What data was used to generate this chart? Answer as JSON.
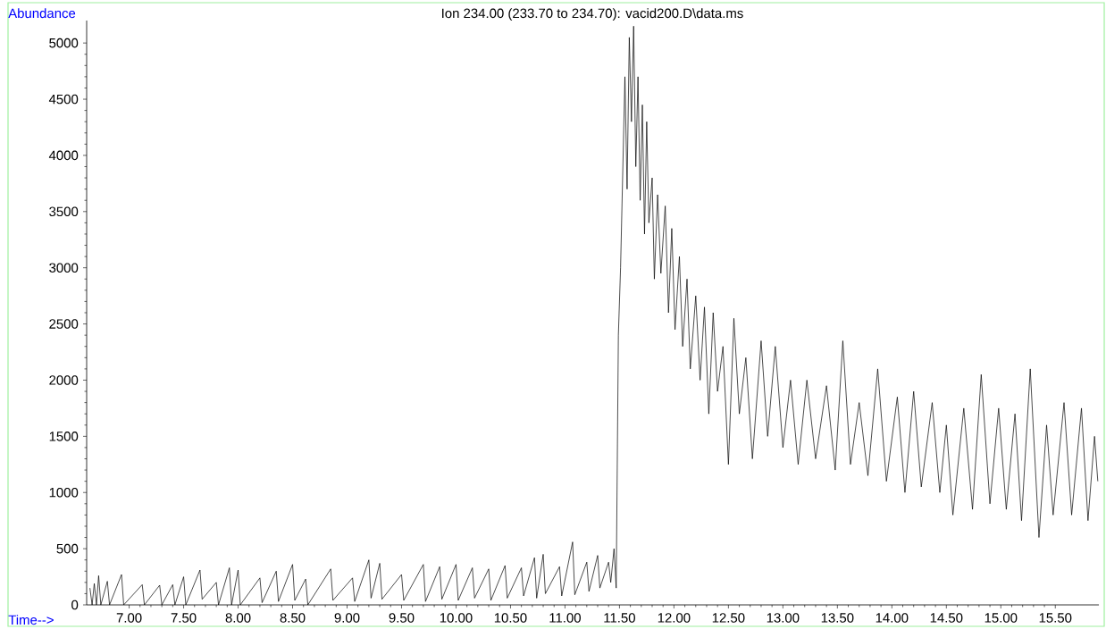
{
  "chart_data": {
    "type": "line",
    "title": "Ion 234.00 (233.70 to 234.70): vacid200.D\\data.ms",
    "xlabel": "Time-->",
    "ylabel": "Abundance",
    "x": [
      6.64,
      6.66,
      6.68,
      6.7,
      6.72,
      6.74,
      6.8,
      6.82,
      6.93,
      6.95,
      7.12,
      7.14,
      7.28,
      7.3,
      7.4,
      7.42,
      7.5,
      7.52,
      7.65,
      7.67,
      7.8,
      7.82,
      7.92,
      7.94,
      8.0,
      8.02,
      8.2,
      8.22,
      8.35,
      8.37,
      8.5,
      8.52,
      8.62,
      8.64,
      8.85,
      8.87,
      9.05,
      9.07,
      9.2,
      9.22,
      9.3,
      9.32,
      9.5,
      9.52,
      9.7,
      9.72,
      9.85,
      9.87,
      10.0,
      10.02,
      10.15,
      10.17,
      10.3,
      10.32,
      10.45,
      10.47,
      10.6,
      10.62,
      10.72,
      10.74,
      10.8,
      10.82,
      10.95,
      10.97,
      11.07,
      11.09,
      11.2,
      11.22,
      11.3,
      11.32,
      11.4,
      11.42,
      11.45,
      11.47,
      11.49,
      11.51,
      11.55,
      11.57,
      11.59,
      11.61,
      11.63,
      11.65,
      11.67,
      11.69,
      11.71,
      11.73,
      11.75,
      11.77,
      11.8,
      11.82,
      11.85,
      11.88,
      11.92,
      11.95,
      11.98,
      12.01,
      12.05,
      12.08,
      12.12,
      12.15,
      12.2,
      12.24,
      12.28,
      12.32,
      12.36,
      12.4,
      12.45,
      12.5,
      12.55,
      12.6,
      12.66,
      12.72,
      12.8,
      12.86,
      12.93,
      13.0,
      13.07,
      13.14,
      13.22,
      13.3,
      13.4,
      13.48,
      13.55,
      13.62,
      13.7,
      13.78,
      13.87,
      13.95,
      14.05,
      14.12,
      14.2,
      14.27,
      14.37,
      14.44,
      14.5,
      14.56,
      14.66,
      14.74,
      14.82,
      14.9,
      14.98,
      15.05,
      15.13,
      15.19,
      15.27,
      15.35,
      15.42,
      15.48,
      15.58,
      15.65,
      15.74,
      15.8,
      15.86,
      15.89
    ],
    "series": [
      {
        "color": "#000000",
        "values": [
          150,
          0,
          190,
          0,
          260,
          0,
          210,
          0,
          270,
          0,
          180,
          0,
          175,
          0,
          180,
          0,
          250,
          0,
          310,
          50,
          200,
          0,
          330,
          0,
          310,
          0,
          240,
          20,
          300,
          30,
          360,
          40,
          230,
          0,
          320,
          40,
          240,
          30,
          400,
          60,
          370,
          50,
          270,
          40,
          360,
          30,
          340,
          50,
          360,
          40,
          330,
          60,
          320,
          40,
          350,
          60,
          330,
          80,
          420,
          60,
          450,
          100,
          340,
          80,
          560,
          90,
          380,
          120,
          440,
          150,
          380,
          200,
          500,
          150,
          2400,
          3000,
          4700,
          3700,
          5050,
          4300,
          5150,
          3900,
          4700,
          3600,
          4450,
          3300,
          4300,
          3400,
          3800,
          2900,
          3650,
          2950,
          3550,
          2600,
          3350,
          2450,
          3100,
          2300,
          2900,
          2100,
          2750,
          2000,
          2650,
          1700,
          2600,
          1900,
          2300,
          1250,
          2550,
          1700,
          2200,
          1300,
          2350,
          1500,
          2300,
          1400,
          2000,
          1250,
          2000,
          1300,
          1950,
          1200,
          2350,
          1250,
          1800,
          1150,
          2100,
          1100,
          1850,
          1000,
          1900,
          1050,
          1800,
          1000,
          1600,
          800,
          1750,
          850,
          2050,
          900,
          1750,
          850,
          1700,
          750,
          2100,
          600,
          1600,
          800,
          1800,
          800,
          1750,
          750,
          1500,
          1100
        ]
      }
    ],
    "xlim": [
      6.61,
      15.9
    ],
    "ylim": [
      0,
      5200
    ],
    "xticks": [
      {
        "value": 7.0,
        "label": "7.00"
      },
      {
        "value": 7.5,
        "label": "7.50"
      },
      {
        "value": 8.0,
        "label": "8.00"
      },
      {
        "value": 8.5,
        "label": "8.50"
      },
      {
        "value": 9.0,
        "label": "9.00"
      },
      {
        "value": 9.5,
        "label": "9.50"
      },
      {
        "value": 10.0,
        "label": "10.00"
      },
      {
        "value": 10.5,
        "label": "10.50"
      },
      {
        "value": 11.0,
        "label": "11.00"
      },
      {
        "value": 11.5,
        "label": "11.50"
      },
      {
        "value": 12.0,
        "label": "12.00"
      },
      {
        "value": 12.5,
        "label": "12.50"
      },
      {
        "value": 13.0,
        "label": "13.00"
      },
      {
        "value": 13.5,
        "label": "13.50"
      },
      {
        "value": 14.0,
        "label": "14.00"
      },
      {
        "value": 14.5,
        "label": "14.50"
      },
      {
        "value": 15.0,
        "label": "15.00"
      },
      {
        "value": 15.5,
        "label": "15.50"
      }
    ],
    "yticks": [
      0,
      500,
      1000,
      1500,
      2000,
      2500,
      3000,
      3500,
      4000,
      4500,
      5000
    ]
  }
}
